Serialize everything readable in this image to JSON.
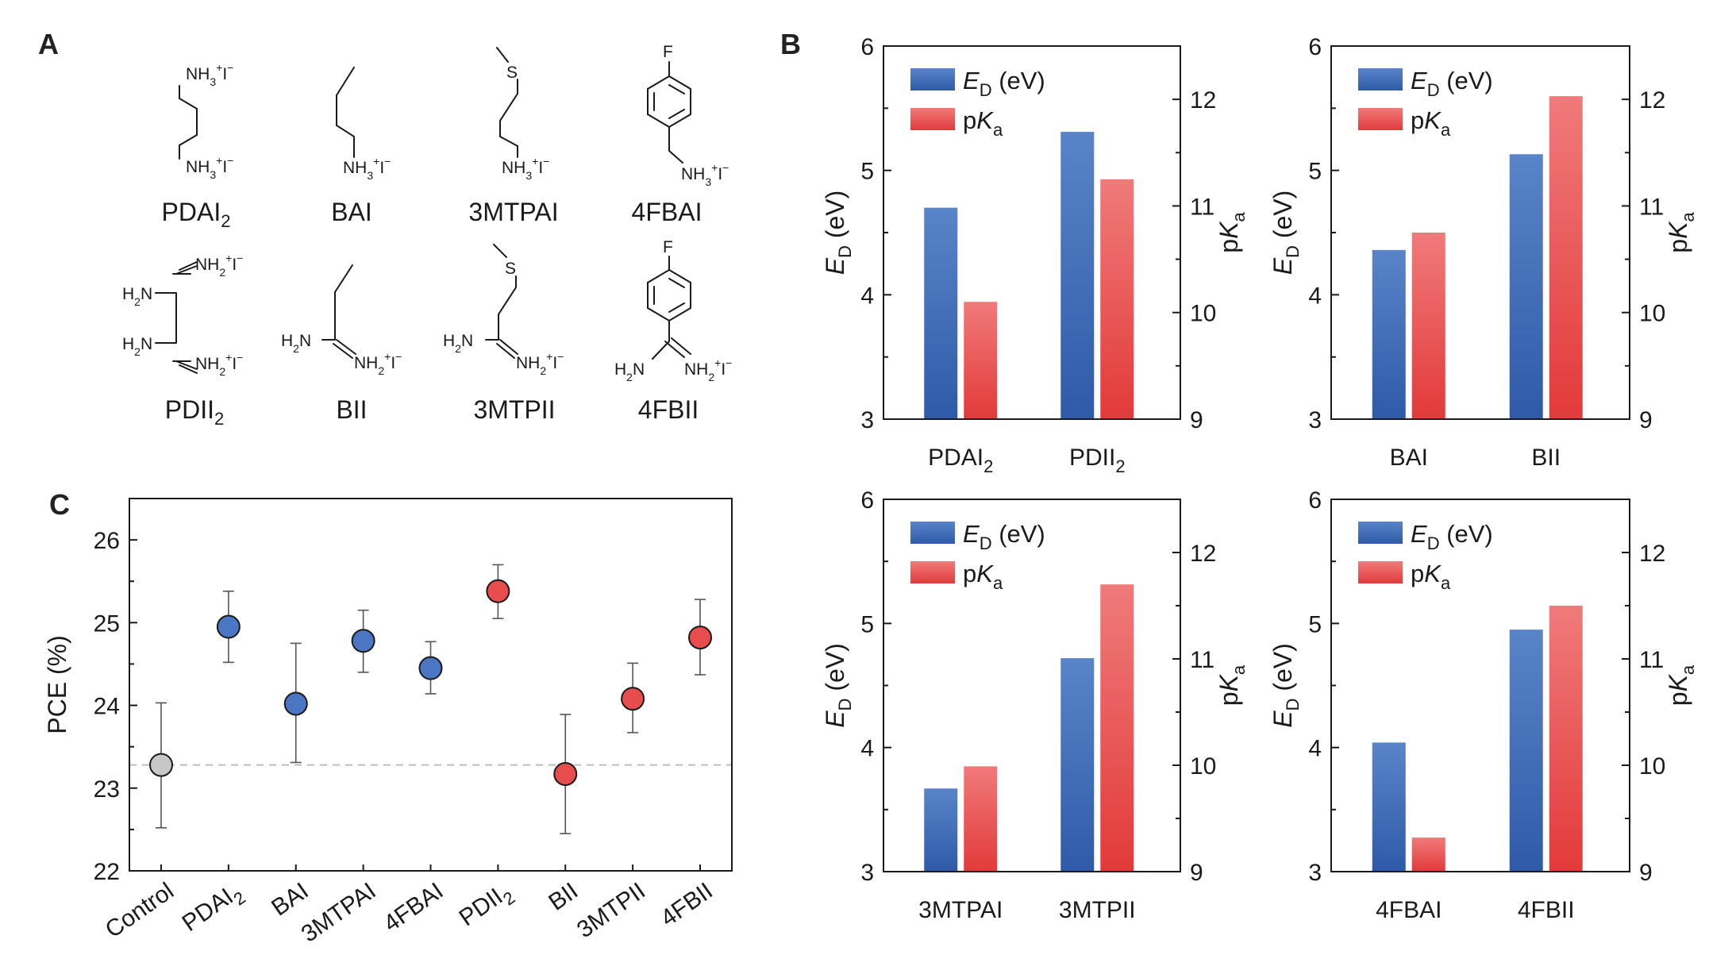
{
  "panels": {
    "a": "A",
    "b": "B",
    "c": "C"
  },
  "molecules": [
    {
      "name": "PDAI",
      "sub": "2",
      "labels": [
        "NH",
        "3",
        "+",
        "I",
        "−",
        "NH",
        "3",
        "+",
        "I",
        "−"
      ]
    },
    {
      "name": "BAI",
      "sub": "",
      "labels": [
        "NH",
        "3",
        "+",
        "I",
        "−"
      ]
    },
    {
      "name": "3MTPAI",
      "sub": "",
      "labels": [
        "S",
        "NH",
        "3",
        "+",
        "I",
        "−"
      ]
    },
    {
      "name": "4FBAI",
      "sub": "",
      "labels": [
        "F",
        "NH",
        "3",
        "+",
        "I",
        "−"
      ]
    },
    {
      "name": "PDII",
      "sub": "2",
      "labels": [
        "NH",
        "2",
        "+",
        "I",
        "−",
        "H",
        "2",
        "N",
        "H",
        "2",
        "N",
        "NH",
        "2",
        "+",
        "I",
        "−"
      ]
    },
    {
      "name": "BII",
      "sub": "",
      "labels": [
        "H",
        "2",
        "N",
        "NH",
        "2",
        "+",
        "I",
        "−"
      ]
    },
    {
      "name": "3MTPII",
      "sub": "",
      "labels": [
        "S",
        "H",
        "2",
        "N",
        "NH",
        "2",
        "+",
        "I",
        "−"
      ]
    },
    {
      "name": "4FBII",
      "sub": "",
      "labels": [
        "F",
        "H",
        "2",
        "N",
        "NH",
        "2",
        "+",
        "I",
        "−"
      ]
    }
  ],
  "bar_common": {
    "legend": [
      {
        "symbol": "E",
        "sub": "D",
        "unit": " (eV)",
        "color_top": "#5a84c8",
        "color_bottom": "#2f5aa8"
      },
      {
        "symbol": "p",
        "symbol2": "K",
        "sub": "a",
        "unit": "",
        "color_top": "#f07a7a",
        "color_bottom": "#e33a3a"
      }
    ],
    "left_axis": {
      "symbol": "E",
      "sub": "D",
      "unit": " (eV)",
      "ticks": [
        "3",
        "4",
        "5",
        "6"
      ],
      "range": [
        3,
        6
      ]
    },
    "right_axis": {
      "symbol": "p",
      "symbol2": "K",
      "sub": "a",
      "ticks": [
        "9",
        "10",
        "11",
        "12"
      ],
      "range": [
        9,
        12.5
      ]
    }
  },
  "chart_data": [
    {
      "type": "bar",
      "categories": [
        {
          "name": "PDAI",
          "sub": "2"
        },
        {
          "name": "PDII",
          "sub": "2"
        }
      ],
      "series": [
        {
          "name": "ED (eV)",
          "axis": "left",
          "values": [
            4.7,
            5.31
          ]
        },
        {
          "name": "pKa",
          "axis": "right",
          "values": [
            10.1,
            11.25
          ]
        }
      ],
      "ylim": [
        3,
        6
      ],
      "y2lim": [
        9,
        12.5
      ]
    },
    {
      "type": "bar",
      "categories": [
        {
          "name": "BAI",
          "sub": ""
        },
        {
          "name": "BII",
          "sub": ""
        }
      ],
      "series": [
        {
          "name": "ED (eV)",
          "axis": "left",
          "values": [
            4.36,
            5.13
          ]
        },
        {
          "name": "pKa",
          "axis": "right",
          "values": [
            10.75,
            12.03
          ]
        }
      ],
      "ylim": [
        3,
        6
      ],
      "y2lim": [
        9,
        12.5
      ]
    },
    {
      "type": "bar",
      "categories": [
        {
          "name": "3MTPAI",
          "sub": ""
        },
        {
          "name": "3MTPII",
          "sub": ""
        }
      ],
      "series": [
        {
          "name": "ED (eV)",
          "axis": "left",
          "values": [
            3.67,
            4.72
          ]
        },
        {
          "name": "pKa",
          "axis": "right",
          "values": [
            9.99,
            11.7
          ]
        }
      ],
      "ylim": [
        3,
        6
      ],
      "y2lim": [
        9,
        12.5
      ]
    },
    {
      "type": "bar",
      "categories": [
        {
          "name": "4FBAI",
          "sub": ""
        },
        {
          "name": "4FBII",
          "sub": ""
        }
      ],
      "series": [
        {
          "name": "ED (eV)",
          "axis": "left",
          "values": [
            4.04,
            4.95
          ]
        },
        {
          "name": "pKa",
          "axis": "right",
          "values": [
            9.32,
            11.5
          ]
        }
      ],
      "ylim": [
        3,
        6
      ],
      "y2lim": [
        9,
        12.5
      ]
    },
    {
      "type": "scatter",
      "ylabel": "PCE (%)",
      "categories": [
        {
          "name": "Control",
          "sub": ""
        },
        {
          "name": "PDAI",
          "sub": "2"
        },
        {
          "name": "BAI",
          "sub": ""
        },
        {
          "name": "3MTPAI",
          "sub": ""
        },
        {
          "name": "4FBAI",
          "sub": ""
        },
        {
          "name": "PDII",
          "sub": "2"
        },
        {
          "name": "BII",
          "sub": ""
        },
        {
          "name": "3MTPII",
          "sub": ""
        },
        {
          "name": "4FBII",
          "sub": ""
        }
      ],
      "values": [
        23.28,
        24.95,
        24.02,
        24.78,
        24.45,
        25.38,
        23.17,
        24.08,
        24.82
      ],
      "err_low": [
        22.52,
        24.52,
        23.31,
        24.4,
        24.14,
        25.05,
        22.45,
        23.67,
        24.37
      ],
      "err_high": [
        24.03,
        25.38,
        24.75,
        25.15,
        24.77,
        25.7,
        23.89,
        24.51,
        25.28
      ],
      "point_colors": [
        "#c7c7c7",
        "#4a76c4",
        "#4a76c4",
        "#4a76c4",
        "#4a76c4",
        "#e84d4d",
        "#e84d4d",
        "#e84d4d",
        "#e84d4d"
      ],
      "reference_line": 23.28,
      "yticks": [
        "22",
        "23",
        "24",
        "25",
        "26"
      ],
      "ylim": [
        22,
        26.5
      ]
    }
  ]
}
